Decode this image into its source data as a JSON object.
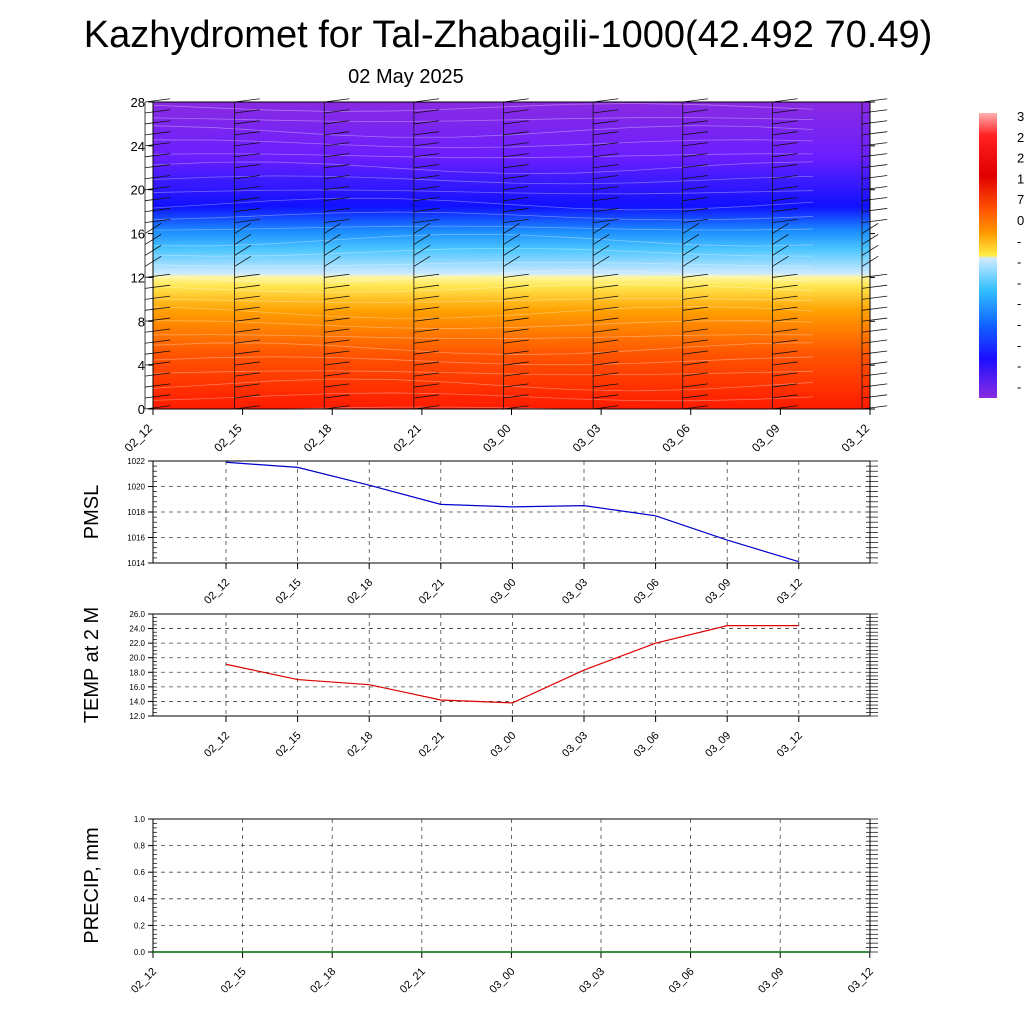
{
  "header": {
    "title": "Kazhydromet for Tal-Zhabagili-1000(42.492 70.49)",
    "date": "02 May 2025"
  },
  "colorbar": {
    "labels": [
      "3",
      "2",
      "2",
      "1",
      "7",
      "0",
      "-",
      "-",
      "-",
      "-",
      "-",
      "-",
      "-",
      "-"
    ]
  },
  "chart_data": [
    {
      "type": "heatmap",
      "title": "",
      "x": [
        "02_12",
        "02_15",
        "02_18",
        "02_21",
        "03_00",
        "03_03",
        "03_06",
        "03_09",
        "03_12"
      ],
      "y_ticks": [
        0,
        4,
        8,
        12,
        16,
        20,
        24,
        28
      ],
      "ylim": [
        0,
        28
      ],
      "colors": {
        "warm_bottom": "#ff2200",
        "orange": "#ff7a00",
        "yellow": "#fff37a",
        "light_blue": "#bfe4ff",
        "cyan": "#1eb4ff",
        "blue": "#1010ff",
        "purple": "#8a2be2"
      },
      "wind_barbs": true
    },
    {
      "type": "line",
      "ylabel": "PMSL",
      "categories": [
        "02_12",
        "02_15",
        "02_18",
        "02_21",
        "03_00",
        "03_03",
        "03_06",
        "03_09",
        "03_12"
      ],
      "values": [
        1021.9,
        1021.5,
        1020.1,
        1018.6,
        1018.4,
        1018.5,
        1017.7,
        1015.8,
        1014.1
      ],
      "yticks": [
        "1014",
        "1016",
        "1018",
        "1020",
        "1022"
      ],
      "ylim": [
        1014,
        1022
      ],
      "color": "#0000cc",
      "grid": true
    },
    {
      "type": "line",
      "ylabel": "TEMP at 2 M",
      "categories": [
        "02_12",
        "02_15",
        "02_18",
        "02_21",
        "03_00",
        "03_03",
        "03_06",
        "03_09",
        "03_12"
      ],
      "values": [
        19.1,
        17.0,
        16.3,
        14.2,
        13.8,
        18.3,
        22.0,
        24.4,
        24.4
      ],
      "yticks": [
        "12.0",
        "14.0",
        "16.0",
        "18.0",
        "20.0",
        "22.0",
        "24.0",
        "26.0"
      ],
      "ylim": [
        12,
        26
      ],
      "color": "#dd0000",
      "grid": true
    },
    {
      "type": "line",
      "ylabel": "PRECIP, mm",
      "categories": [
        "02_12",
        "02_15",
        "02_18",
        "02_21",
        "03_00",
        "03_03",
        "03_06",
        "03_09",
        "03_12"
      ],
      "values": [
        0,
        0,
        0,
        0,
        0,
        0,
        0,
        0,
        0
      ],
      "yticks": [
        "0.0",
        "0.2",
        "0.4",
        "0.6",
        "0.8",
        "1.0"
      ],
      "ylim": [
        0,
        1
      ],
      "color": "#006600",
      "grid": true
    }
  ]
}
